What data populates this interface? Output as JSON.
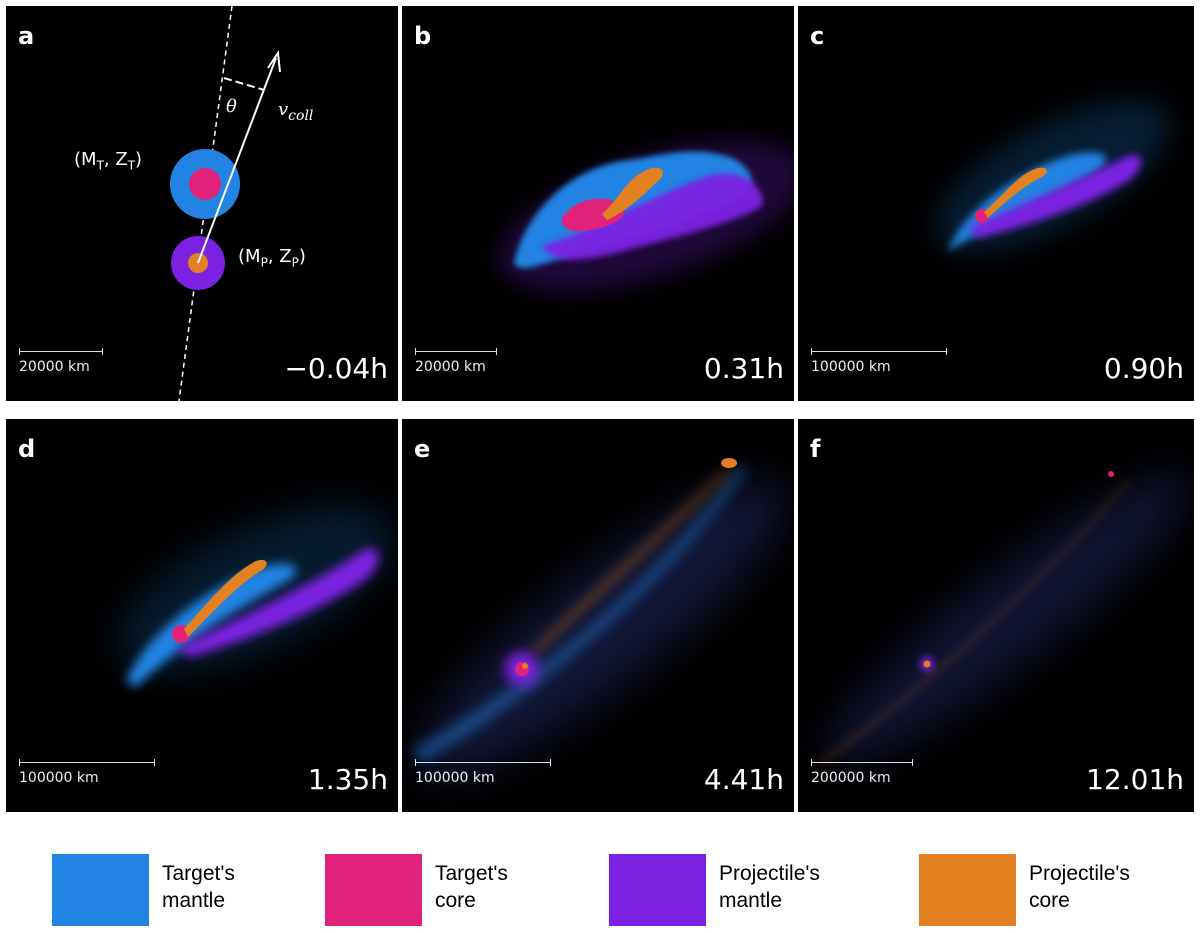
{
  "panels": [
    {
      "label": "a",
      "time": "−0.04h",
      "scale": "20000 km"
    },
    {
      "label": "b",
      "time": "0.31h",
      "scale": "20000 km"
    },
    {
      "label": "c",
      "time": "0.90h",
      "scale": "100000 km"
    },
    {
      "label": "d",
      "time": "1.35h",
      "scale": "100000 km"
    },
    {
      "label": "e",
      "time": "4.41h",
      "scale": "100000 km"
    },
    {
      "label": "f",
      "time": "12.01h",
      "scale": "200000 km"
    }
  ],
  "annotations": {
    "theta": "θ",
    "vcoll": "v",
    "vcoll_sub": "coll",
    "target_params": "(M",
    "target_m_sub": "T",
    "target_z": ", Z",
    "target_z_sub": "T",
    "target_close": ")",
    "proj_params": "(M",
    "proj_m_sub": "P",
    "proj_z": ", Z",
    "proj_z_sub": "P",
    "proj_close": ")"
  },
  "legend": [
    {
      "line1": "Target's",
      "line2": "mantle",
      "color": "#2283e2"
    },
    {
      "line1": "Target's",
      "line2": "core",
      "color": "#e0227a"
    },
    {
      "line1": "Projectile's",
      "line2": "mantle",
      "color": "#7b22e2"
    },
    {
      "line1": "Projectile's",
      "line2": "core",
      "color": "#e28022"
    }
  ],
  "colors": {
    "target_mantle": "#2283e2",
    "target_core": "#e0227a",
    "projectile_mantle": "#7b22e2",
    "projectile_core": "#e28022"
  }
}
